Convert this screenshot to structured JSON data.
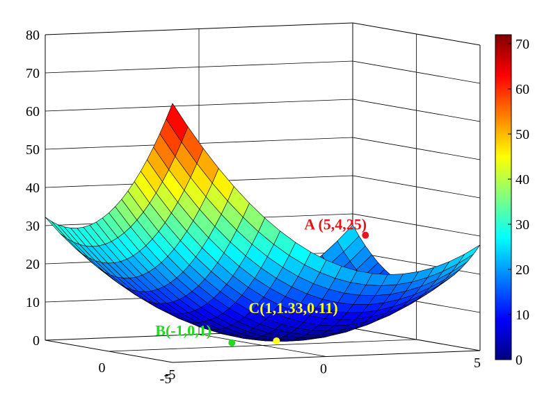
{
  "chart_data": {
    "type": "surface3d",
    "title": "",
    "xlabel": "",
    "ylabel": "",
    "zlabel": "",
    "colormap": "jet",
    "grid": true,
    "x_range": [
      -5,
      5
    ],
    "y_range": [
      -5,
      5
    ],
    "z_range": [
      0,
      80
    ],
    "x_ticks": [
      "-5",
      "0",
      "5"
    ],
    "y_ticks": [
      "-5",
      "0"
    ],
    "z_ticks": [
      "0",
      "10",
      "20",
      "30",
      "40",
      "50",
      "60",
      "70",
      "80"
    ],
    "colorbar": {
      "range": [
        0,
        72
      ],
      "ticks": [
        "0",
        "10",
        "20",
        "30",
        "40",
        "50",
        "60",
        "70"
      ]
    },
    "surface_peak_values": {
      "corner_max": 72,
      "minimum": 0.11
    },
    "points": [
      {
        "label": "A (5,4,25)",
        "x": 5,
        "y": 4,
        "z": 25,
        "color": "#e8141b"
      },
      {
        "label": "B(-1,0,1)",
        "x": -1,
        "y": 0,
        "z": 1,
        "color": "#1fdc1f"
      },
      {
        "label": "C(1,1.33,0.11)",
        "x": 1,
        "y": 1.33,
        "z": 0.11,
        "color": "#ffff19"
      }
    ]
  }
}
